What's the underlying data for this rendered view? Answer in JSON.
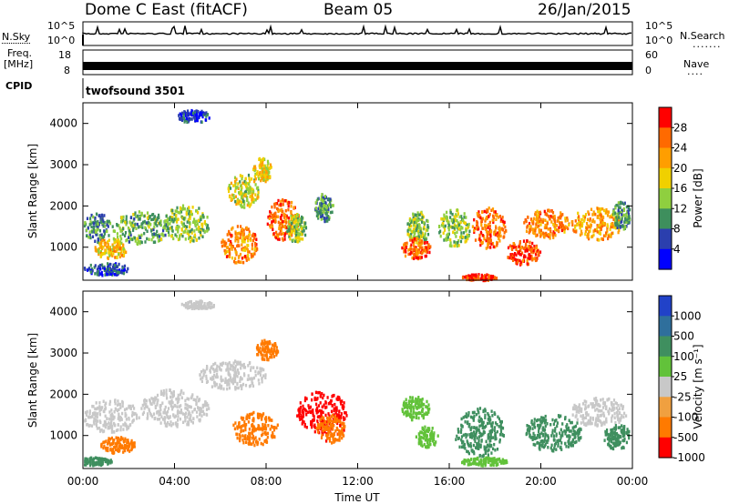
{
  "header": {
    "station": "Dome C East (fitACF)",
    "beam": "Beam 05",
    "date": "26/Jan/2015"
  },
  "top_panels": {
    "nsky_label": "N.Sky",
    "nsky_ticks": [
      "10^5",
      "10^0"
    ],
    "nsearch_label": "N.Search",
    "freq_label_top": "Freq.",
    "freq_label_unit": "[MHz]",
    "freq_ticks": [
      "18",
      "8"
    ],
    "nave_label": "Nave",
    "nave_ticks": [
      "60",
      "0"
    ],
    "cpid_label": "CPID",
    "cpid_value": "twofsound 3501"
  },
  "chart_data": [
    {
      "type": "heatmap",
      "panel": "power",
      "ylabel": "Slant Range [km]",
      "xlabel": "",
      "y_ticks": [
        "1000",
        "2000",
        "3000",
        "4000"
      ],
      "ylim": [
        200,
        4500
      ],
      "x_ticks": [
        "00:00",
        "04:00",
        "08:00",
        "12:00",
        "16:00",
        "20:00",
        "00:00"
      ],
      "colorbar": {
        "label": "Power [dB]",
        "ticks": [
          "4",
          "8",
          "12",
          "16",
          "20",
          "24",
          "28"
        ],
        "colors": [
          "#0000ff",
          "#2b3fae",
          "#3e8f5d",
          "#8fcf3f",
          "#f0d000",
          "#ff9e00",
          "#ff6a00",
          "#ff0000"
        ]
      },
      "blobs": [
        {
          "t": 0.6,
          "r": 1500,
          "w": 1.2,
          "h": 700,
          "v": 10
        },
        {
          "t": 1.2,
          "r": 1000,
          "w": 1.5,
          "h": 500,
          "v": 20
        },
        {
          "t": 2.5,
          "r": 1500,
          "w": 2.5,
          "h": 800,
          "v": 12
        },
        {
          "t": 4.5,
          "r": 1600,
          "w": 2.0,
          "h": 900,
          "v": 14
        },
        {
          "t": 6.8,
          "r": 1100,
          "w": 1.6,
          "h": 900,
          "v": 24
        },
        {
          "t": 7.0,
          "r": 2400,
          "w": 1.4,
          "h": 800,
          "v": 16
        },
        {
          "t": 7.8,
          "r": 2900,
          "w": 0.8,
          "h": 600,
          "v": 18
        },
        {
          "t": 8.7,
          "r": 1700,
          "w": 1.4,
          "h": 1000,
          "v": 26
        },
        {
          "t": 9.3,
          "r": 1500,
          "w": 0.9,
          "h": 700,
          "v": 14
        },
        {
          "t": 1.0,
          "r": 500,
          "w": 2.0,
          "h": 300,
          "v": 6
        },
        {
          "t": 4.8,
          "r": 4200,
          "w": 1.5,
          "h": 300,
          "v": 5
        },
        {
          "t": 10.5,
          "r": 2000,
          "w": 0.8,
          "h": 700,
          "v": 10
        },
        {
          "t": 14.6,
          "r": 1500,
          "w": 1.0,
          "h": 800,
          "v": 14
        },
        {
          "t": 14.5,
          "r": 1000,
          "w": 1.3,
          "h": 500,
          "v": 26
        },
        {
          "t": 16.2,
          "r": 1500,
          "w": 1.4,
          "h": 900,
          "v": 14
        },
        {
          "t": 17.7,
          "r": 1500,
          "w": 1.5,
          "h": 1000,
          "v": 26
        },
        {
          "t": 17.3,
          "r": 300,
          "w": 1.5,
          "h": 150,
          "v": 28
        },
        {
          "t": 19.2,
          "r": 900,
          "w": 1.5,
          "h": 600,
          "v": 28
        },
        {
          "t": 20.2,
          "r": 1600,
          "w": 2.0,
          "h": 700,
          "v": 24
        },
        {
          "t": 22.4,
          "r": 1600,
          "w": 2.2,
          "h": 800,
          "v": 22
        },
        {
          "t": 23.5,
          "r": 1800,
          "w": 0.8,
          "h": 700,
          "v": 10
        }
      ]
    },
    {
      "type": "heatmap",
      "panel": "velocity",
      "ylabel": "Slant Range [km]",
      "xlabel": "Time UT",
      "y_ticks": [
        "1000",
        "2000",
        "3000",
        "4000"
      ],
      "ylim": [
        200,
        4500
      ],
      "x_ticks": [
        "00:00",
        "04:00",
        "08:00",
        "12:00",
        "16:00",
        "20:00",
        "00:00"
      ],
      "colorbar": {
        "label": "Velocity [m s⁻¹]",
        "ticks": [
          "1000",
          "500",
          "100",
          "25",
          "-25",
          "-100",
          "-500",
          "-1000"
        ],
        "colors": [
          "#2142c8",
          "#2f6f9c",
          "#3f8f5f",
          "#62c23a",
          "#c8c8c8",
          "#f0a040",
          "#ff7a00",
          "#ff0000"
        ]
      },
      "blobs": [
        {
          "t": 1.2,
          "r": 1500,
          "w": 2.5,
          "h": 800,
          "v": -10
        },
        {
          "t": 1.5,
          "r": 800,
          "w": 1.5,
          "h": 400,
          "v": -150
        },
        {
          "t": 0.5,
          "r": 400,
          "w": 1.5,
          "h": 200,
          "v": 150
        },
        {
          "t": 4.0,
          "r": 1700,
          "w": 3.0,
          "h": 900,
          "v": 0
        },
        {
          "t": 6.5,
          "r": 2500,
          "w": 3.0,
          "h": 700,
          "v": 0
        },
        {
          "t": 7.5,
          "r": 1200,
          "w": 2.0,
          "h": 800,
          "v": -200
        },
        {
          "t": 8.0,
          "r": 3100,
          "w": 1.0,
          "h": 500,
          "v": -300
        },
        {
          "t": 10.4,
          "r": 1600,
          "w": 2.2,
          "h": 1000,
          "v": -700
        },
        {
          "t": 10.8,
          "r": 1200,
          "w": 1.3,
          "h": 700,
          "v": -400
        },
        {
          "t": 5.0,
          "r": 4200,
          "w": 1.5,
          "h": 200,
          "v": 0
        },
        {
          "t": 14.5,
          "r": 1700,
          "w": 1.2,
          "h": 600,
          "v": 60
        },
        {
          "t": 15.0,
          "r": 1000,
          "w": 1.0,
          "h": 500,
          "v": 60
        },
        {
          "t": 17.3,
          "r": 1100,
          "w": 2.2,
          "h": 1200,
          "v": 200
        },
        {
          "t": 17.5,
          "r": 400,
          "w": 2.0,
          "h": 200,
          "v": 60
        },
        {
          "t": 20.5,
          "r": 1100,
          "w": 2.5,
          "h": 900,
          "v": 200
        },
        {
          "t": 22.5,
          "r": 1600,
          "w": 2.5,
          "h": 700,
          "v": 0
        },
        {
          "t": 23.3,
          "r": 1000,
          "w": 1.2,
          "h": 600,
          "v": 150
        }
      ]
    }
  ]
}
